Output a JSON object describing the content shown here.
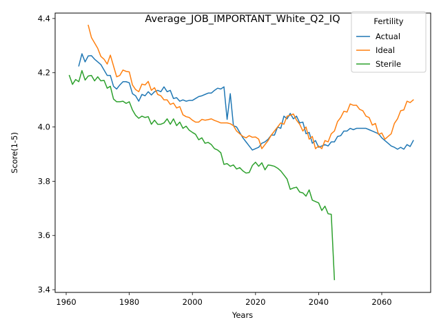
{
  "chart_data": {
    "type": "line",
    "title": "Average_JOB_IMPORTANT_White_Q2_IQ",
    "xlabel": "Years",
    "ylabel": "Score(1-5)",
    "xlim": [
      1956.5,
      2075.5
    ],
    "ylim": [
      3.39,
      4.42
    ],
    "xticks": [
      1960,
      1980,
      2000,
      2020,
      2040,
      2060
    ],
    "yticks": [
      3.4,
      3.6,
      3.8,
      4.0,
      4.2,
      4.4
    ],
    "grid": false,
    "legend": {
      "title": "Fertility",
      "position": "upper right"
    },
    "series": [
      {
        "name": "Actual",
        "color": "#1f77b4",
        "x": [
          1964,
          1965,
          1966,
          1967,
          1968,
          1969,
          1970,
          1971,
          1972,
          1973,
          1974,
          1975,
          1976,
          1977,
          1978,
          1979,
          1980,
          1981,
          1982,
          1983,
          1984,
          1985,
          1986,
          1987,
          1988,
          1989,
          1990,
          1991,
          1992,
          1993,
          1994,
          1995,
          1996,
          1997,
          1998,
          1999,
          2000,
          2001,
          2002,
          2003,
          2004,
          2005,
          2006,
          2007,
          2008,
          2009,
          2010,
          2011,
          2012,
          2013,
          2014,
          2015,
          2016,
          2017,
          2018,
          2019,
          2020,
          2021,
          2022,
          2023,
          2024,
          2025,
          2026,
          2027,
          2028,
          2029,
          2030,
          2031,
          2032,
          2033,
          2034,
          2035,
          2036,
          2037,
          2038,
          2039,
          2040,
          2041,
          2042,
          2043,
          2044,
          2045,
          2046,
          2047,
          2048,
          2049,
          2050,
          2051,
          2052,
          2053,
          2054,
          2055,
          2056,
          2057,
          2058,
          2059,
          2060,
          2061,
          2062,
          2063,
          2064,
          2065,
          2066,
          2067,
          2068,
          2069,
          2070
        ],
        "y": [
          4.225,
          4.27,
          4.24,
          4.262,
          4.263,
          4.25,
          4.24,
          4.23,
          4.21,
          4.19,
          4.19,
          4.15,
          4.14,
          4.155,
          4.167,
          4.167,
          4.163,
          4.123,
          4.115,
          4.095,
          4.12,
          4.115,
          4.13,
          4.118,
          4.13,
          4.135,
          4.13,
          4.148,
          4.13,
          4.135,
          4.105,
          4.108,
          4.095,
          4.1,
          4.095,
          4.098,
          4.098,
          4.105,
          4.112,
          4.115,
          4.12,
          4.125,
          4.125,
          4.135,
          4.143,
          4.14,
          4.148,
          4.028,
          4.123,
          4.005,
          4.0,
          3.98,
          3.96,
          3.945,
          3.93,
          3.915,
          3.92,
          3.925,
          3.94,
          3.945,
          3.955,
          3.97,
          3.97,
          4.0,
          3.995,
          4.04,
          4.03,
          4.05,
          4.03,
          4.04,
          4.015,
          4.018,
          3.975,
          3.98,
          3.94,
          3.95,
          3.925,
          3.93,
          3.935,
          3.93,
          3.945,
          3.945,
          3.965,
          3.968,
          3.985,
          3.985,
          3.995,
          3.99,
          3.995,
          3.995,
          3.995,
          3.995,
          3.99,
          3.985,
          3.98,
          3.975,
          3.96,
          3.95,
          3.94,
          3.93,
          3.925,
          3.918,
          3.925,
          3.918,
          3.935,
          3.928,
          3.95
        ]
      },
      {
        "name": "Ideal",
        "color": "#ff7f0e",
        "x": [
          1967,
          1968,
          1969,
          1970,
          1971,
          1972,
          1973,
          1974,
          1975,
          1976,
          1977,
          1978,
          1979,
          1980,
          1981,
          1982,
          1983,
          1984,
          1985,
          1986,
          1987,
          1988,
          1989,
          1990,
          1991,
          1992,
          1993,
          1994,
          1995,
          1996,
          1997,
          1998,
          1999,
          2000,
          2001,
          2002,
          2003,
          2004,
          2005,
          2006,
          2007,
          2008,
          2009,
          2010,
          2011,
          2012,
          2013,
          2014,
          2015,
          2016,
          2017,
          2018,
          2019,
          2020,
          2021,
          2022,
          2023,
          2024,
          2025,
          2026,
          2027,
          2028,
          2029,
          2030,
          2031,
          2032,
          2033,
          2034,
          2035,
          2036,
          2037,
          2038,
          2039,
          2040,
          2041,
          2042,
          2043,
          2044,
          2045,
          2046,
          2047,
          2048,
          2049,
          2050,
          2051,
          2052,
          2053,
          2054,
          2055,
          2056,
          2057,
          2058,
          2059,
          2060,
          2061,
          2062,
          2063,
          2064,
          2065,
          2066,
          2067,
          2068,
          2069,
          2070
        ],
        "y": [
          4.375,
          4.33,
          4.31,
          4.29,
          4.26,
          4.25,
          4.232,
          4.265,
          4.225,
          4.185,
          4.19,
          4.21,
          4.205,
          4.203,
          4.155,
          4.138,
          4.13,
          4.158,
          4.155,
          4.168,
          4.135,
          4.145,
          4.12,
          4.115,
          4.1,
          4.1,
          4.083,
          4.088,
          4.07,
          4.075,
          4.045,
          4.038,
          4.035,
          4.025,
          4.018,
          4.018,
          4.028,
          4.025,
          4.027,
          4.03,
          4.024,
          4.02,
          4.015,
          4.015,
          4.015,
          4.012,
          4.005,
          3.985,
          3.975,
          3.965,
          3.96,
          3.968,
          3.962,
          3.963,
          3.955,
          3.92,
          3.935,
          3.95,
          3.97,
          3.985,
          4.0,
          4.015,
          4.01,
          4.04,
          4.043,
          4.048,
          4.025,
          4.01,
          3.985,
          4.0,
          3.955,
          3.965,
          3.92,
          3.93,
          3.92,
          3.95,
          3.945,
          3.975,
          3.985,
          4.02,
          4.035,
          4.058,
          4.055,
          4.085,
          4.08,
          4.08,
          4.065,
          4.06,
          4.04,
          4.035,
          4.007,
          4.013,
          3.972,
          3.978,
          3.955,
          3.965,
          3.975,
          4.013,
          4.03,
          4.06,
          4.063,
          4.095,
          4.09,
          4.1
        ]
      },
      {
        "name": "Sterile",
        "color": "#2ca02c",
        "x": [
          1961,
          1962,
          1963,
          1964,
          1965,
          1966,
          1967,
          1968,
          1969,
          1970,
          1971,
          1972,
          1973,
          1974,
          1975,
          1976,
          1977,
          1978,
          1979,
          1980,
          1981,
          1982,
          1983,
          1984,
          1985,
          1986,
          1987,
          1988,
          1989,
          1990,
          1991,
          1992,
          1993,
          1994,
          1995,
          1996,
          1997,
          1998,
          1999,
          2000,
          2001,
          2002,
          2003,
          2004,
          2005,
          2006,
          2007,
          2008,
          2009,
          2010,
          2011,
          2012,
          2013,
          2014,
          2015,
          2016,
          2017,
          2018,
          2019,
          2020,
          2021,
          2022,
          2023,
          2024,
          2025,
          2026,
          2027,
          2028,
          2029,
          2030,
          2031,
          2032,
          2033,
          2034,
          2035,
          2036,
          2037,
          2038,
          2039,
          2040,
          2041,
          2042,
          2043,
          2044,
          2045
        ],
        "y": [
          4.19,
          4.157,
          4.175,
          4.167,
          4.208,
          4.173,
          4.188,
          4.19,
          4.17,
          4.185,
          4.17,
          4.172,
          4.143,
          4.15,
          4.103,
          4.093,
          4.093,
          4.095,
          4.087,
          4.093,
          4.063,
          4.043,
          4.032,
          4.04,
          4.035,
          4.038,
          4.01,
          4.025,
          4.01,
          4.01,
          4.015,
          4.03,
          4.01,
          4.03,
          4.005,
          4.018,
          3.995,
          4.003,
          3.988,
          3.98,
          3.973,
          3.953,
          3.96,
          3.94,
          3.943,
          3.935,
          3.92,
          3.915,
          3.905,
          3.862,
          3.865,
          3.855,
          3.86,
          3.845,
          3.85,
          3.838,
          3.83,
          3.832,
          3.858,
          3.87,
          3.855,
          3.868,
          3.842,
          3.86,
          3.858,
          3.855,
          3.848,
          3.838,
          3.823,
          3.808,
          3.77,
          3.775,
          3.778,
          3.76,
          3.757,
          3.745,
          3.768,
          3.73,
          3.725,
          3.72,
          3.692,
          3.708,
          3.68,
          3.678,
          3.437
        ]
      }
    ]
  }
}
